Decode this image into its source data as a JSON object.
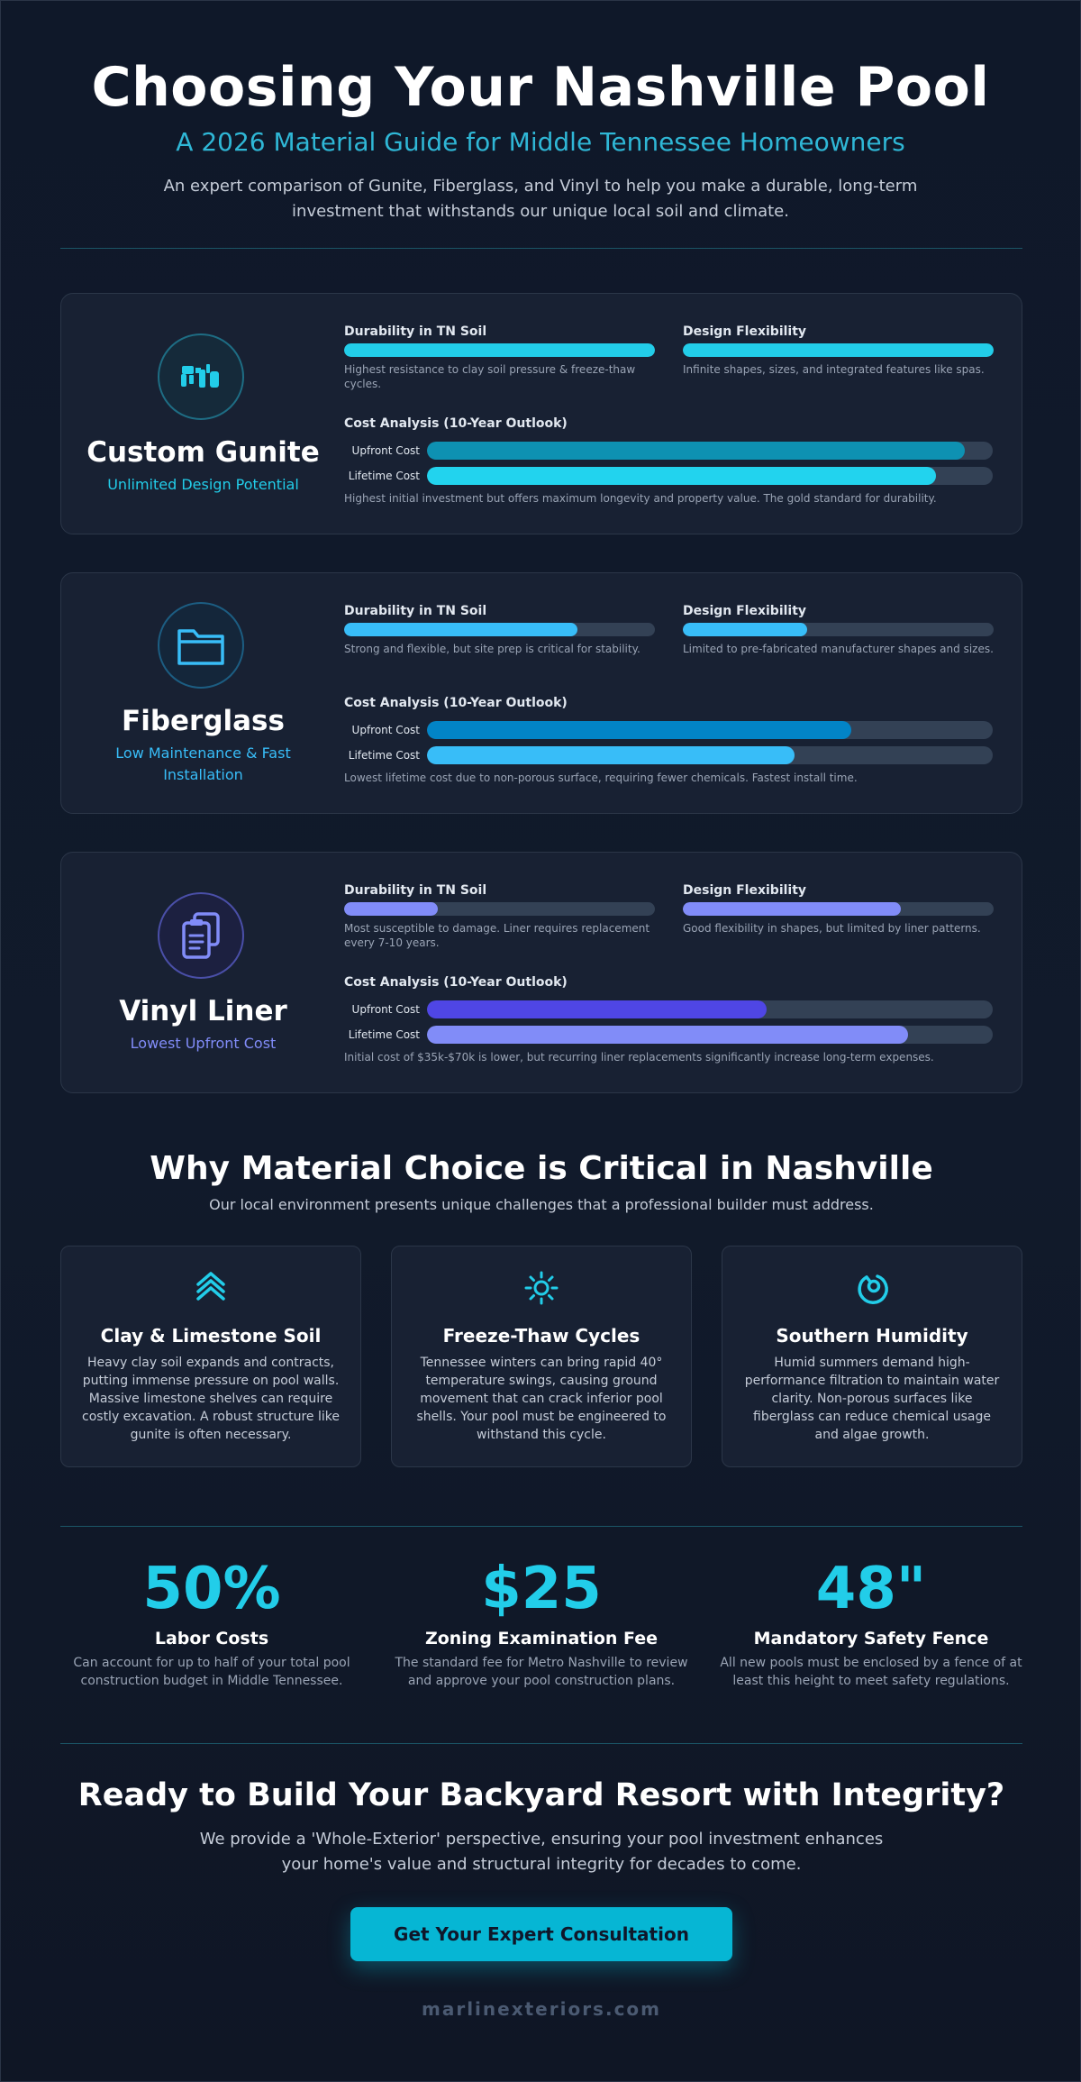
{
  "header": {
    "title": "Choosing Your Nashville Pool",
    "subtitle": "A 2026 Material Guide for Middle Tennessee Homeowners",
    "intro": "An expert comparison of Gunite, Fiberglass, and Vinyl to help you make a durable, long-term investment that withstands our unique local soil and climate."
  },
  "materials": [
    {
      "name": "Custom Gunite",
      "tagline": "Unlimited Design Potential",
      "icon": "gunite-icon",
      "accent": "#22cde9",
      "durability": {
        "label": "Durability in TN Soil",
        "level": 1.0,
        "description": "Highest resistance to clay soil pressure & freeze-thaw cycles."
      },
      "flexibility": {
        "label": "Design Flexibility",
        "level": 1.0,
        "description": "Infinite shapes, sizes, and integrated features like spas."
      },
      "cost": {
        "title": "Cost Analysis (10-Year Outlook)",
        "upfront_label": "Upfront Cost",
        "upfront_level": 0.95,
        "lifetime_label": "Lifetime Cost",
        "lifetime_level": 0.9,
        "note": "Highest initial investment but offers maximum longevity and property value. The gold standard for durability."
      }
    },
    {
      "name": "Fiberglass",
      "tagline": "Low Maintenance & Fast Installation",
      "icon": "folder-icon",
      "accent": "#38bdf8",
      "durability": {
        "label": "Durability in TN Soil",
        "level": 0.75,
        "description": "Strong and flexible, but site prep is critical for stability."
      },
      "flexibility": {
        "label": "Design Flexibility",
        "level": 0.4,
        "description": "Limited to pre-fabricated manufacturer shapes and sizes."
      },
      "cost": {
        "title": "Cost Analysis (10-Year Outlook)",
        "upfront_label": "Upfront Cost",
        "upfront_level": 0.75,
        "lifetime_label": "Lifetime Cost",
        "lifetime_level": 0.65,
        "note": "Lowest lifetime cost due to non-porous surface, requiring fewer chemicals. Fastest install time."
      }
    },
    {
      "name": "Vinyl Liner",
      "tagline": "Lowest Upfront Cost",
      "icon": "clipboard-icon",
      "accent": "#818cf8",
      "durability": {
        "label": "Durability in TN Soil",
        "level": 0.3,
        "description": "Most susceptible to damage. Liner requires replacement every 7-10 years."
      },
      "flexibility": {
        "label": "Design Flexibility",
        "level": 0.7,
        "description": "Good flexibility in shapes, but limited by liner patterns."
      },
      "cost": {
        "title": "Cost Analysis (10-Year Outlook)",
        "upfront_label": "Upfront Cost",
        "upfront_level": 0.6,
        "lifetime_label": "Lifetime Cost",
        "lifetime_level": 0.85,
        "note": "Initial cost of $35k-$70k is lower, but recurring liner replacements significantly increase long-term expenses."
      }
    }
  ],
  "why": {
    "title": "Why Material Choice is Critical in Nashville",
    "subtitle": "Our local environment presents unique challenges that a professional builder must address.",
    "factors": [
      {
        "icon": "layers-chevron-icon",
        "title": "Clay & Limestone Soil",
        "text": "Heavy clay soil expands and contracts, putting immense pressure on pool walls. Massive limestone shelves can require costly excavation. A robust structure like gunite is often necessary."
      },
      {
        "icon": "sun-icon",
        "title": "Freeze-Thaw Cycles",
        "text": "Tennessee winters can bring rapid 40° temperature swings, causing ground movement that can crack inferior pool shells. Your pool must be engineered to withstand this cycle."
      },
      {
        "icon": "droplet-swirl-icon",
        "title": "Southern Humidity",
        "text": "Humid summers demand high-performance filtration to maintain water clarity. Non-porous surfaces like fiberglass can reduce chemical usage and algae growth."
      }
    ]
  },
  "stats": [
    {
      "value": "50%",
      "label": "Labor Costs",
      "description": "Can account for up to half of your total pool construction budget in Middle Tennessee."
    },
    {
      "value": "$25",
      "label": "Zoning Examination Fee",
      "description": "The standard fee for Metro Nashville to review and approve your pool construction plans."
    },
    {
      "value": "48\"",
      "label": "Mandatory Safety Fence",
      "description": "All new pools must be enclosed by a fence of at least this height to meet safety regulations."
    }
  ],
  "cta": {
    "title": "Ready to Build Your Backyard Resort with Integrity?",
    "text": "We provide a 'Whole-Exterior' perspective, ensuring your pool investment enhances your home's value and structural integrity for decades to come.",
    "button_label": "Get Your Expert Consultation"
  },
  "footer": {
    "site": "marlinexteriors.com"
  },
  "colors": {
    "background": "#0f1726",
    "card": "#182133",
    "accent_cyan": "#22cde9",
    "button": "#06b6d4"
  }
}
